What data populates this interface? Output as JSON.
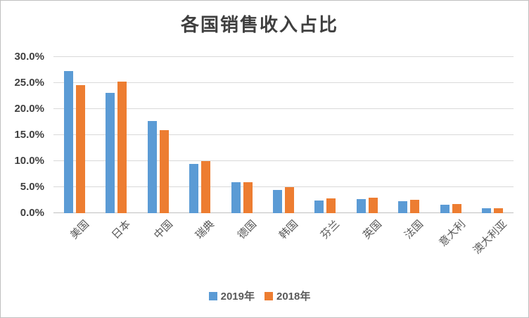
{
  "window": {
    "background": "#FFFFFF",
    "border_color": "#BFBFBF",
    "gridline_color": "#D9D9D9",
    "axisline_color": "#BFBFBF"
  },
  "chart_data": {
    "type": "bar",
    "title": "各国销售收入占比",
    "categories": [
      "美国",
      "日本",
      "中国",
      "瑞典",
      "德国",
      "韩国",
      "芬兰",
      "英国",
      "法国",
      "意大利",
      "澳大利亚"
    ],
    "series": [
      {
        "name": "2019年",
        "color": "#5B9BD5",
        "values": [
          27.3,
          23.1,
          17.7,
          9.5,
          5.9,
          4.5,
          2.4,
          2.7,
          2.3,
          1.6,
          0.9
        ]
      },
      {
        "name": "2018年",
        "color": "#ED7D31",
        "values": [
          24.6,
          25.3,
          16.0,
          10.0,
          6.0,
          5.0,
          2.8,
          3.0,
          2.6,
          1.8,
          0.9
        ]
      }
    ],
    "xlabel": "",
    "ylabel": "",
    "ylim": [
      0,
      30
    ],
    "ytick_step": 5,
    "ytick_labels": [
      "0.0%",
      "5.0%",
      "10.0%",
      "15.0%",
      "20.0%",
      "25.0%",
      "30.0%"
    ],
    "grid": true,
    "legend_position": "bottom"
  }
}
